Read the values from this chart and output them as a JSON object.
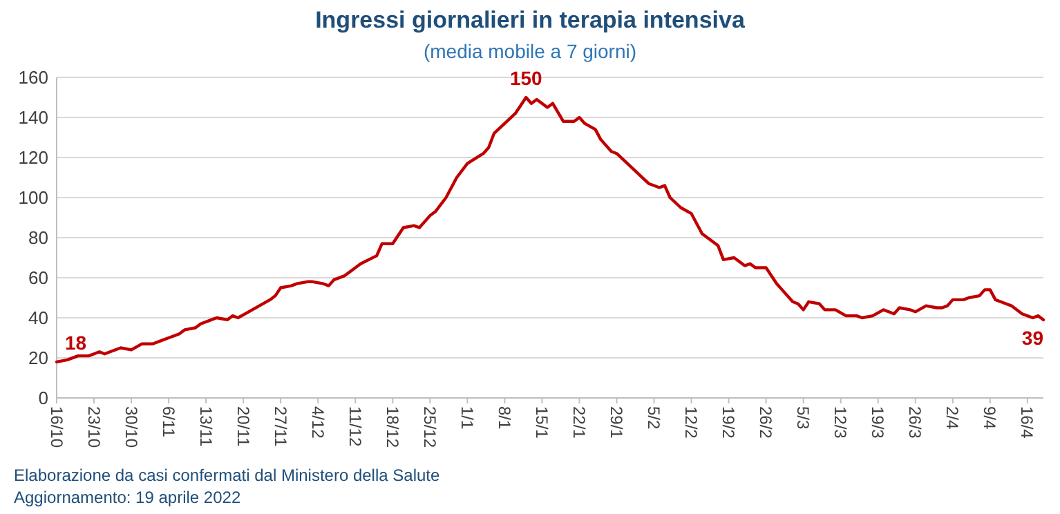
{
  "chart_data": {
    "type": "line",
    "title": "Ingressi giornalieri in terapia intensiva",
    "subtitle": "(media mobile a 7 giorni)",
    "x": [
      "2021-10-16",
      "2021-10-18",
      "2021-10-20",
      "2021-10-22",
      "2021-10-23",
      "2021-10-24",
      "2021-10-25",
      "2021-10-26",
      "2021-10-28",
      "2021-10-30",
      "2021-11-01",
      "2021-11-03",
      "2021-11-05",
      "2021-11-06",
      "2021-11-08",
      "2021-11-09",
      "2021-11-11",
      "2021-11-12",
      "2021-11-14",
      "2021-11-15",
      "2021-11-17",
      "2021-11-18",
      "2021-11-19",
      "2021-11-21",
      "2021-11-23",
      "2021-11-25",
      "2021-11-26",
      "2021-11-27",
      "2021-11-29",
      "2021-11-30",
      "2021-12-02",
      "2021-12-03",
      "2021-12-05",
      "2021-12-06",
      "2021-12-07",
      "2021-12-09",
      "2021-12-11",
      "2021-12-12",
      "2021-12-15",
      "2021-12-16",
      "2021-12-18",
      "2021-12-20",
      "2021-12-22",
      "2021-12-23",
      "2021-12-25",
      "2021-12-26",
      "2021-12-28",
      "2021-12-30",
      "2022-01-01",
      "2022-01-04",
      "2022-01-05",
      "2022-01-06",
      "2022-01-08",
      "2022-01-10",
      "2022-01-12",
      "2022-01-13",
      "2022-01-14",
      "2022-01-16",
      "2022-01-17",
      "2022-01-19",
      "2022-01-21",
      "2022-01-22",
      "2022-01-23",
      "2022-01-25",
      "2022-01-26",
      "2022-01-28",
      "2022-01-29",
      "2022-01-31",
      "2022-02-02",
      "2022-02-04",
      "2022-02-06",
      "2022-02-07",
      "2022-02-08",
      "2022-02-10",
      "2022-02-12",
      "2022-02-13",
      "2022-02-14",
      "2022-02-17",
      "2022-02-18",
      "2022-02-20",
      "2022-02-21",
      "2022-02-22",
      "2022-02-23",
      "2022-02-24",
      "2022-02-26",
      "2022-02-28",
      "2022-03-01",
      "2022-03-03",
      "2022-03-04",
      "2022-03-05",
      "2022-03-06",
      "2022-03-08",
      "2022-03-09",
      "2022-03-10",
      "2022-03-11",
      "2022-03-13",
      "2022-03-15",
      "2022-03-16",
      "2022-03-18",
      "2022-03-20",
      "2022-03-21",
      "2022-03-22",
      "2022-03-23",
      "2022-03-25",
      "2022-03-26",
      "2022-03-28",
      "2022-03-30",
      "2022-03-31",
      "2022-04-01",
      "2022-04-02",
      "2022-04-04",
      "2022-04-05",
      "2022-04-07",
      "2022-04-08",
      "2022-04-09",
      "2022-04-10",
      "2022-04-11",
      "2022-04-13",
      "2022-04-15",
      "2022-04-16",
      "2022-04-17",
      "2022-04-18",
      "2022-04-19"
    ],
    "series": [
      {
        "color": "#c00000",
        "values": [
          18,
          19,
          21,
          21,
          22,
          23,
          22,
          23,
          25,
          24,
          27,
          27,
          29,
          30,
          32,
          34,
          35,
          37,
          39,
          40,
          39,
          41,
          40,
          43,
          46,
          49,
          51,
          55,
          56,
          57,
          58,
          58,
          57,
          56,
          59,
          61,
          65,
          67,
          71,
          77,
          77,
          85,
          86,
          85,
          91,
          93,
          100,
          110,
          117,
          122,
          125,
          132,
          137,
          142,
          150,
          147,
          149,
          145,
          147,
          138,
          138,
          140,
          137,
          134,
          129,
          123,
          122,
          117,
          112,
          107,
          105,
          106,
          100,
          95,
          92,
          87,
          82,
          76,
          69,
          70,
          68,
          66,
          67,
          65,
          65,
          57,
          54,
          48,
          47,
          44,
          48,
          47,
          44,
          44,
          44,
          41,
          41,
          40,
          41,
          44,
          43,
          42,
          45,
          44,
          43,
          46,
          45,
          45,
          46,
          49,
          49,
          50,
          51,
          54,
          54,
          49,
          48,
          46,
          42,
          41,
          40,
          41,
          39
        ]
      }
    ],
    "xlim": [
      "2021-10-16",
      "2022-04-19"
    ],
    "xticks": [
      {
        "value": "2021-10-16",
        "label": "16/10"
      },
      {
        "value": "2021-10-23",
        "label": "23/10"
      },
      {
        "value": "2021-10-30",
        "label": "30/10"
      },
      {
        "value": "2021-11-06",
        "label": "6/11"
      },
      {
        "value": "2021-11-13",
        "label": "13/11"
      },
      {
        "value": "2021-11-20",
        "label": "20/11"
      },
      {
        "value": "2021-11-27",
        "label": "27/11"
      },
      {
        "value": "2021-12-04",
        "label": "4/12"
      },
      {
        "value": "2021-12-11",
        "label": "11/12"
      },
      {
        "value": "2021-12-18",
        "label": "18/12"
      },
      {
        "value": "2021-12-25",
        "label": "25/12"
      },
      {
        "value": "2022-01-01",
        "label": "1/1"
      },
      {
        "value": "2022-01-08",
        "label": "8/1"
      },
      {
        "value": "2022-01-15",
        "label": "15/1"
      },
      {
        "value": "2022-01-22",
        "label": "22/1"
      },
      {
        "value": "2022-01-29",
        "label": "29/1"
      },
      {
        "value": "2022-02-05",
        "label": "5/2"
      },
      {
        "value": "2022-02-12",
        "label": "12/2"
      },
      {
        "value": "2022-02-19",
        "label": "19/2"
      },
      {
        "value": "2022-02-26",
        "label": "26/2"
      },
      {
        "value": "2022-03-05",
        "label": "5/3"
      },
      {
        "value": "2022-03-12",
        "label": "12/3"
      },
      {
        "value": "2022-03-19",
        "label": "19/3"
      },
      {
        "value": "2022-03-26",
        "label": "26/3"
      },
      {
        "value": "2022-04-02",
        "label": "2/4"
      },
      {
        "value": "2022-04-09",
        "label": "9/4"
      },
      {
        "value": "2022-04-16",
        "label": "16/4"
      }
    ],
    "ylim": [
      0,
      160
    ],
    "yticks": [
      0,
      20,
      40,
      60,
      80,
      100,
      120,
      140,
      160
    ],
    "grid": "y",
    "annotations": [
      {
        "text": "18",
        "x": "2021-10-16",
        "y": 18
      },
      {
        "text": "150",
        "x": "2022-01-12",
        "y": 150
      },
      {
        "text": "39",
        "x": "2022-04-19",
        "y": 39
      },
      "Elaborazione da casi confermati dal Ministero della Salute",
      "Aggiornamento: 19 aprile 2022"
    ]
  }
}
